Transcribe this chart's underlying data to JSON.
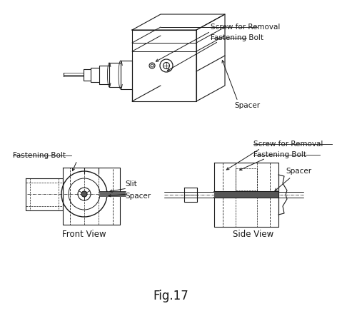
{
  "title": "Fig.17",
  "background_color": "#ffffff",
  "line_color": "#1a1a1a",
  "annotation_color": "#1a1a1a",
  "labels": {
    "screw_for_removal_top": "Screw for Removal",
    "fastening_bolt_top": "Fastening Bolt",
    "spacer_top": "Spacer",
    "fastening_bolt_front": "Fastening Bolt",
    "slit": "Slit",
    "spacer_front": "Spacer",
    "screw_for_removal_side": "Screw for Removal",
    "fastening_bolt_side": "Fastening Bolt",
    "spacer_side": "Spacer",
    "front_view": "Front View",
    "side_view": "Side View"
  },
  "fig_label_fontsize": 12,
  "label_fontsize": 7.5,
  "view_label_fontsize": 8.5
}
